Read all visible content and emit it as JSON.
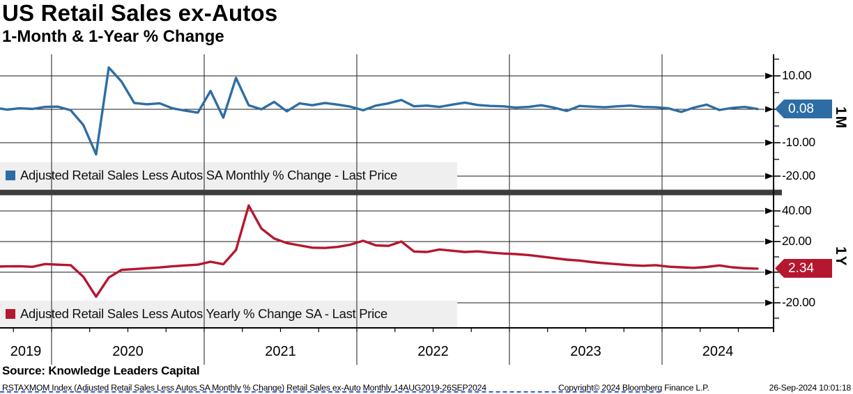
{
  "header": {
    "title": "US Retail Sales ex-Autos",
    "subtitle": "1-Month & 1-Year % Change"
  },
  "source_line": "Source: Knowledge Leaders Capital",
  "footer": {
    "left": "RSTAXMOM Index (Adjusted Retail Sales Less Autos SA Monthly % Change) Retail Sales ex-Auto  Monthly 14AUG2019-26SEP2024",
    "copyright": "Copyright© 2024 Bloomberg Finance L.P.",
    "timestamp": "26-Sep-2024 10:01:18"
  },
  "x_axis": {
    "year_labels": [
      "2019",
      "2020",
      "2021",
      "2022",
      "2023",
      "2024"
    ]
  },
  "colors": {
    "blue": "#2e6da4",
    "red": "#b5172f",
    "legend_bg": "#efefef",
    "divider": "#3d3d3d",
    "grid": "#1a1a1a"
  },
  "chart_data": [
    {
      "type": "line",
      "panel_label": "1M",
      "legend": "Adjusted Retail Sales Less Autos SA Monthly % Change - Last Price",
      "color": "#2e6da4",
      "last_price": "0.08",
      "x_start": "2019-08",
      "x_end": "2024-08",
      "x_range_note": "monthly, 14AUG2019-26SEP2024",
      "ylim": [
        -24,
        16.5
      ],
      "yticks": [
        {
          "v": 10,
          "label": "10.00"
        },
        {
          "v": 0,
          "label": ""
        },
        {
          "v": -10,
          "label": "-10.00"
        },
        {
          "v": -20,
          "label": "-20.00"
        }
      ],
      "minor_ticks": [
        15,
        5,
        -5,
        -15
      ],
      "values": [
        0.5,
        -0.1,
        0.3,
        0.1,
        0.7,
        0.8,
        -0.3,
        -4.7,
        -13.5,
        12.5,
        8.3,
        1.9,
        1.5,
        1.8,
        0.3,
        -0.4,
        -1.0,
        5.5,
        -2.5,
        9.4,
        1.2,
        0.0,
        2.2,
        -0.6,
        1.8,
        1.2,
        1.9,
        1.4,
        0.8,
        -0.3,
        1.1,
        1.8,
        2.8,
        0.9,
        1.1,
        0.7,
        1.4,
        2.0,
        1.3,
        1.0,
        0.9,
        0.5,
        0.7,
        1.2,
        0.5,
        -0.5,
        1.0,
        0.8,
        0.6,
        0.9,
        1.1,
        0.7,
        0.6,
        0.3,
        -0.8,
        0.5,
        1.4,
        -0.2,
        0.4,
        0.7,
        0.08
      ]
    },
    {
      "type": "line",
      "panel_label": "1Y",
      "legend": "Adjusted Retail Sales Less Autos Yearly % Change SA - Last Price",
      "color": "#b5172f",
      "last_price": "2.34",
      "x_start": "2019-08",
      "x_end": "2024-08",
      "x_range_note": "monthly, 14AUG2019-26SEP2024",
      "ylim": [
        -36,
        50
      ],
      "yticks": [
        {
          "v": 40,
          "label": "40.00"
        },
        {
          "v": 20,
          "label": "20.00"
        },
        {
          "v": 0,
          "label": ""
        },
        {
          "v": -20,
          "label": "-20.00"
        }
      ],
      "minor_ticks": [
        30,
        10,
        -10,
        -30
      ],
      "values": [
        3.6,
        3.8,
        3.9,
        3.5,
        5.3,
        4.9,
        4.6,
        -3.0,
        -16.0,
        -3.5,
        1.5,
        2.0,
        2.6,
        3.1,
        3.8,
        4.4,
        4.9,
        6.8,
        5.2,
        14.5,
        43.5,
        28.5,
        22.0,
        19.0,
        17.5,
        16.0,
        15.8,
        16.5,
        18.0,
        20.5,
        17.5,
        17.2,
        20.0,
        13.5,
        13.2,
        14.8,
        14.0,
        13.2,
        13.6,
        12.8,
        12.2,
        11.8,
        11.2,
        10.2,
        9.2,
        8.2,
        7.6,
        6.6,
        5.8,
        5.2,
        4.6,
        4.2,
        4.6,
        3.6,
        3.2,
        2.8,
        3.4,
        4.4,
        3.2,
        2.6,
        2.34
      ]
    }
  ]
}
